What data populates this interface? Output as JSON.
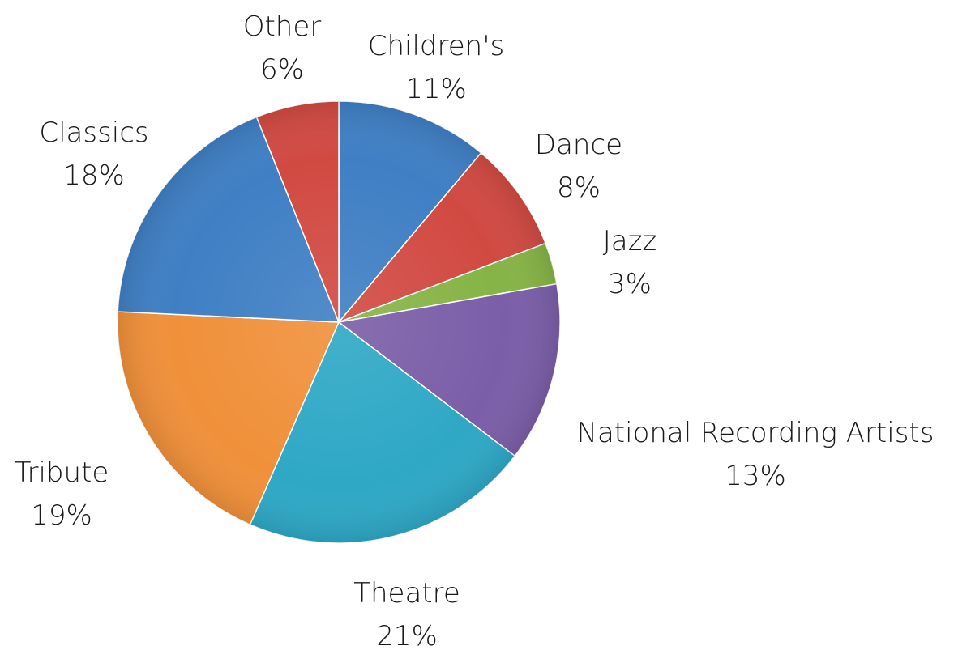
{
  "chart_data": {
    "type": "pie",
    "title": "",
    "slices": [
      {
        "label": "Children's",
        "value": 11,
        "value_label": "11%",
        "color": "#3f7fc4"
      },
      {
        "label": "Dance",
        "value": 8,
        "value_label": "8%",
        "color": "#d14a42"
      },
      {
        "label": "Jazz",
        "value": 3,
        "value_label": "3%",
        "color": "#86b446"
      },
      {
        "label": "National Recording Artists",
        "value": 13,
        "value_label": "13%",
        "color": "#7b5ea8"
      },
      {
        "label": "Theatre",
        "value": 21,
        "value_label": "21%",
        "color": "#2ea8c6"
      },
      {
        "label": "Tribute",
        "value": 19,
        "value_label": "19%",
        "color": "#f0903a"
      },
      {
        "label": "Classics",
        "value": 18,
        "value_label": "18%",
        "color": "#3f7fc4"
      },
      {
        "label": "Other",
        "value": 6,
        "value_label": "6%",
        "color": "#d14a42"
      }
    ],
    "start_angle_deg": 0,
    "direction": "clockwise",
    "legend": "none",
    "data_labels": "outside"
  }
}
